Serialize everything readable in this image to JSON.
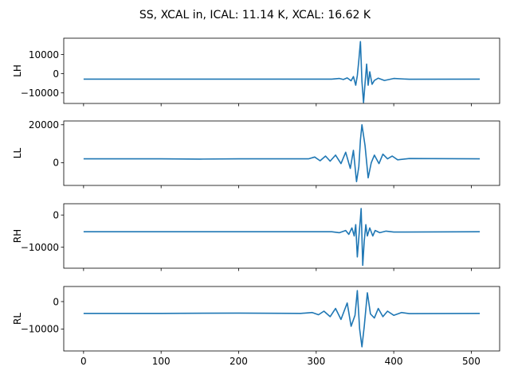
{
  "figure": {
    "title": "SS, XCAL in, ICAL: 11.14 K, XCAL: 16.62 K"
  },
  "chart_data": {
    "type": "line",
    "shared_x": true,
    "xlim": [
      -25.55,
      536.55
    ],
    "xticks": [
      0,
      100,
      200,
      300,
      400,
      500
    ],
    "xtick_labels": [
      "0",
      "100",
      "200",
      "300",
      "400",
      "500"
    ],
    "color": "#1f77b4",
    "grid": false,
    "panels": [
      {
        "ylabel": "LH",
        "ylim": [
          -15500,
          18500
        ],
        "yticks": [
          -10000,
          0,
          10000
        ],
        "ytick_labels": [
          "−10000",
          "0",
          "10000"
        ],
        "points": [
          [
            0,
            -2800
          ],
          [
            320,
            -2800
          ],
          [
            330,
            -2500
          ],
          [
            335,
            -3000
          ],
          [
            340,
            -2200
          ],
          [
            345,
            -3700
          ],
          [
            348,
            -1500
          ],
          [
            351,
            -6000
          ],
          [
            353,
            -1000
          ],
          [
            355,
            7000
          ],
          [
            357,
            16700
          ],
          [
            359,
            -4000
          ],
          [
            361,
            -15000
          ],
          [
            363,
            -5000
          ],
          [
            365,
            5000
          ],
          [
            367,
            -6000
          ],
          [
            369,
            1000
          ],
          [
            372,
            -5500
          ],
          [
            375,
            -3500
          ],
          [
            380,
            -2300
          ],
          [
            388,
            -3500
          ],
          [
            400,
            -2500
          ],
          [
            420,
            -2900
          ],
          [
            511,
            -2800
          ]
        ]
      },
      {
        "ylabel": "LL",
        "ylim": [
          -12000,
          22000
        ],
        "yticks": [
          0,
          20000
        ],
        "ytick_labels": [
          "0",
          "20000"
        ],
        "points": [
          [
            0,
            2000
          ],
          [
            50,
            2000
          ],
          [
            100,
            2000
          ],
          [
            150,
            1900
          ],
          [
            200,
            2000
          ],
          [
            250,
            2000
          ],
          [
            290,
            2000
          ],
          [
            298,
            3000
          ],
          [
            305,
            1000
          ],
          [
            312,
            3500
          ],
          [
            318,
            800
          ],
          [
            325,
            4000
          ],
          [
            332,
            -500
          ],
          [
            338,
            5500
          ],
          [
            344,
            -3000
          ],
          [
            348,
            6500
          ],
          [
            352,
            -10000
          ],
          [
            355,
            -2000
          ],
          [
            357,
            12000
          ],
          [
            359,
            20000
          ],
          [
            363,
            9000
          ],
          [
            367,
            -8000
          ],
          [
            371,
            0
          ],
          [
            375,
            4000
          ],
          [
            381,
            -500
          ],
          [
            386,
            4500
          ],
          [
            392,
            2000
          ],
          [
            398,
            3500
          ],
          [
            405,
            1500
          ],
          [
            420,
            2200
          ],
          [
            511,
            2000
          ]
        ]
      },
      {
        "ylabel": "RH",
        "ylim": [
          -16500,
          3500
        ],
        "yticks": [
          -10000,
          0
        ],
        "ytick_labels": [
          "−10000",
          "0"
        ],
        "points": [
          [
            0,
            -5200
          ],
          [
            320,
            -5200
          ],
          [
            330,
            -5500
          ],
          [
            338,
            -4800
          ],
          [
            342,
            -6000
          ],
          [
            346,
            -4000
          ],
          [
            349,
            -6500
          ],
          [
            351,
            -3000
          ],
          [
            353,
            -13000
          ],
          [
            355,
            -7000
          ],
          [
            357,
            -1000
          ],
          [
            358,
            2000
          ],
          [
            360,
            -15600
          ],
          [
            362,
            -8000
          ],
          [
            364,
            -3000
          ],
          [
            366,
            -6500
          ],
          [
            369,
            -4000
          ],
          [
            373,
            -6500
          ],
          [
            376,
            -4800
          ],
          [
            382,
            -5500
          ],
          [
            390,
            -5000
          ],
          [
            400,
            -5300
          ],
          [
            511,
            -5200
          ]
        ]
      },
      {
        "ylabel": "RL",
        "ylim": [
          -18000,
          5500
        ],
        "yticks": [
          -10000,
          0
        ],
        "ytick_labels": [
          "−10000",
          "0"
        ],
        "points": [
          [
            0,
            -4300
          ],
          [
            100,
            -4300
          ],
          [
            200,
            -4200
          ],
          [
            280,
            -4300
          ],
          [
            295,
            -4000
          ],
          [
            303,
            -4800
          ],
          [
            310,
            -3500
          ],
          [
            318,
            -5500
          ],
          [
            325,
            -2500
          ],
          [
            332,
            -6500
          ],
          [
            340,
            -500
          ],
          [
            345,
            -9000
          ],
          [
            350,
            -5000
          ],
          [
            353,
            4000
          ],
          [
            356,
            -10000
          ],
          [
            359,
            -16500
          ],
          [
            362,
            -9000
          ],
          [
            366,
            3200
          ],
          [
            370,
            -4500
          ],
          [
            375,
            -6000
          ],
          [
            380,
            -2500
          ],
          [
            386,
            -5500
          ],
          [
            392,
            -3500
          ],
          [
            400,
            -5000
          ],
          [
            410,
            -4000
          ],
          [
            420,
            -4400
          ],
          [
            511,
            -4300
          ]
        ]
      }
    ]
  }
}
